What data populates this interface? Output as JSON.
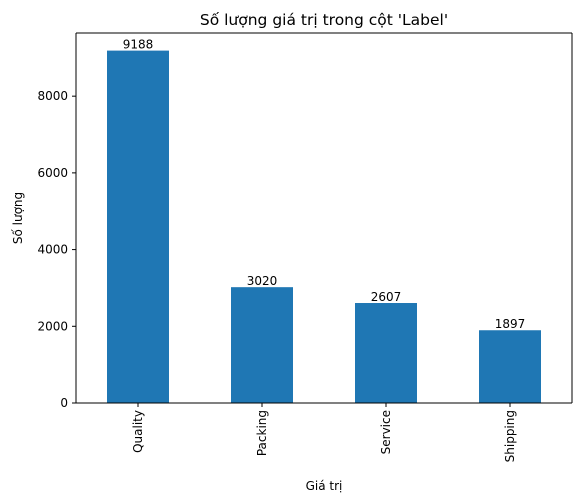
{
  "chart_data": {
    "type": "bar",
    "title": "Số lượng giá trị trong cột 'Label'",
    "xlabel": "Giá trị",
    "ylabel": "Số lượng",
    "categories": [
      "Quality",
      "Packing",
      "Service",
      "Shipping"
    ],
    "values": [
      9188,
      3020,
      2607,
      1897
    ],
    "data_labels": [
      "9188",
      "3020",
      "2607",
      "1897"
    ],
    "yticks": [
      0,
      2000,
      4000,
      6000,
      8000
    ],
    "ylim": [
      0,
      9647
    ],
    "grid": false,
    "legend": "none",
    "bar_color": "#1f77b4",
    "x_tick_rotation": "vertical"
  }
}
